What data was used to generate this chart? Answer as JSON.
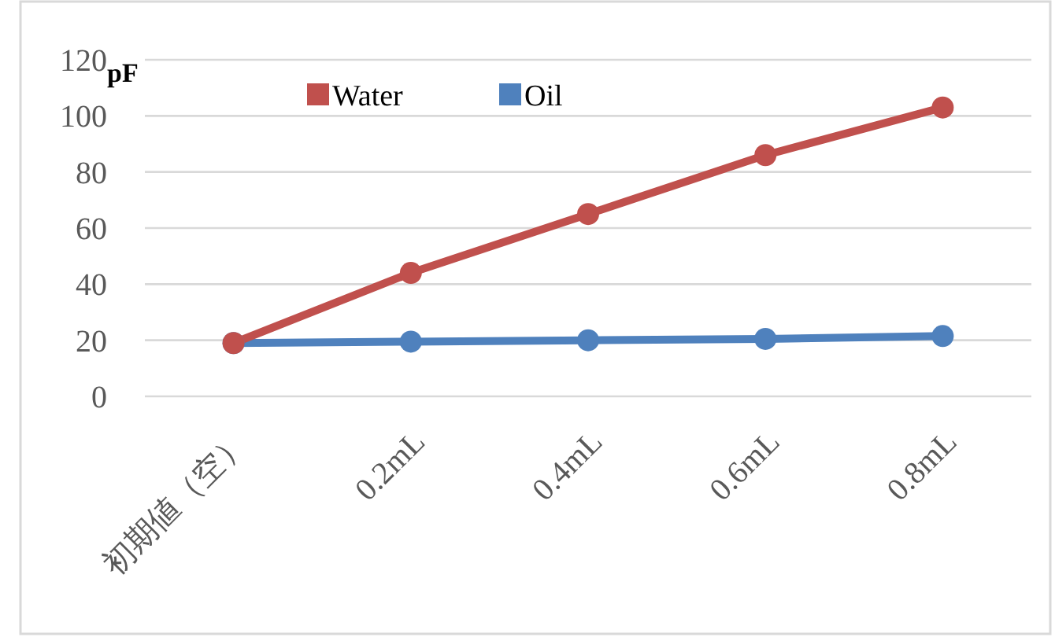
{
  "chart_data": {
    "type": "line",
    "ylabel": "pF",
    "categories": [
      "初期値（空）",
      "0.2mL",
      "0.4mL",
      "0.6mL",
      "0.8mL"
    ],
    "series": [
      {
        "name": "Water",
        "color": "#c0504d",
        "values": [
          19,
          44,
          65,
          86,
          103
        ]
      },
      {
        "name": "Oil",
        "color": "#4f81bd",
        "values": [
          19,
          19.5,
          20,
          20.5,
          21.5
        ]
      }
    ],
    "ylim": [
      0,
      120
    ],
    "yticks": [
      0,
      20,
      40,
      60,
      80,
      100,
      120
    ],
    "grid": "y",
    "legend": "top left",
    "marker": "circle",
    "line_style": "solid"
  }
}
